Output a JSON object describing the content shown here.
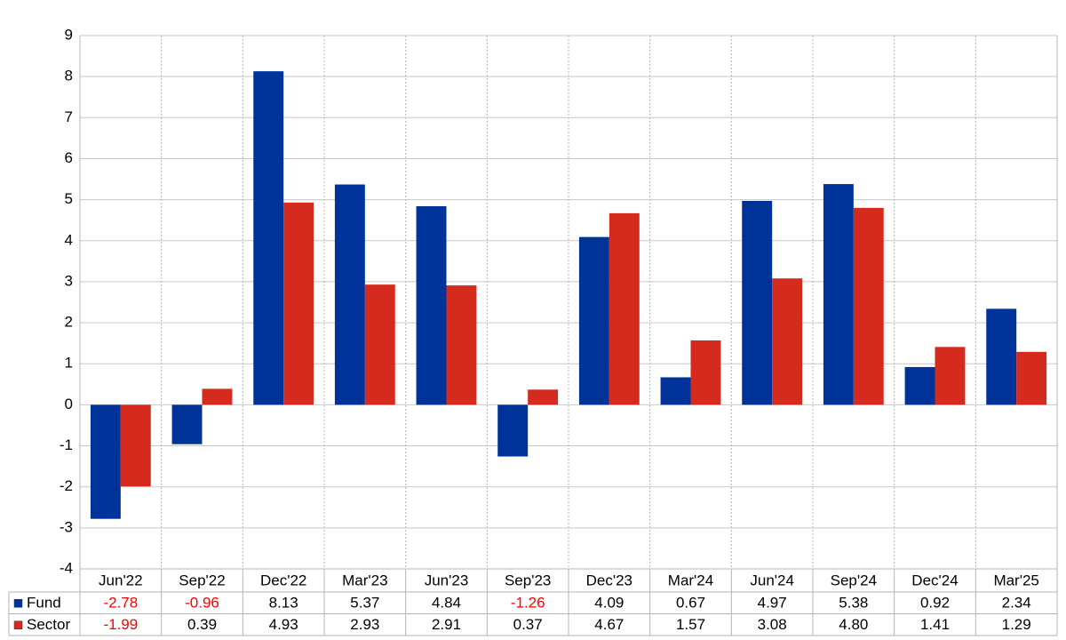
{
  "chart_data": {
    "type": "bar",
    "categories": [
      "Jun'22",
      "Sep'22",
      "Dec'22",
      "Mar'23",
      "Jun'23",
      "Sep'23",
      "Dec'23",
      "Mar'24",
      "Jun'24",
      "Sep'24",
      "Dec'24",
      "Mar'25"
    ],
    "series": [
      {
        "name": "Fund",
        "color": "#003399",
        "values": [
          -2.78,
          -0.96,
          8.13,
          5.37,
          4.84,
          -1.26,
          4.09,
          0.67,
          4.97,
          5.38,
          0.92,
          2.34
        ],
        "value_labels": [
          "-2.78",
          "-0.96",
          "8.13",
          "5.37",
          "4.84",
          "-1.26",
          "4.09",
          "0.67",
          "4.97",
          "5.38",
          "0.92",
          "2.34"
        ]
      },
      {
        "name": "Sector",
        "color": "#d52b1e",
        "values": [
          -1.99,
          0.39,
          4.93,
          2.93,
          2.91,
          0.37,
          4.67,
          1.57,
          3.08,
          4.8,
          1.41,
          1.29
        ],
        "value_labels": [
          "-1.99",
          "0.39",
          "4.93",
          "2.93",
          "2.91",
          "0.37",
          "4.67",
          "1.57",
          "3.08",
          "4.80",
          "1.41",
          "1.29"
        ]
      }
    ],
    "ylim": [
      -4,
      9
    ],
    "yticks": [
      -4,
      -3,
      -2,
      -1,
      0,
      1,
      2,
      3,
      4,
      5,
      6,
      7,
      8,
      9
    ],
    "grid": true,
    "negative_label_color": "#ff0000"
  }
}
